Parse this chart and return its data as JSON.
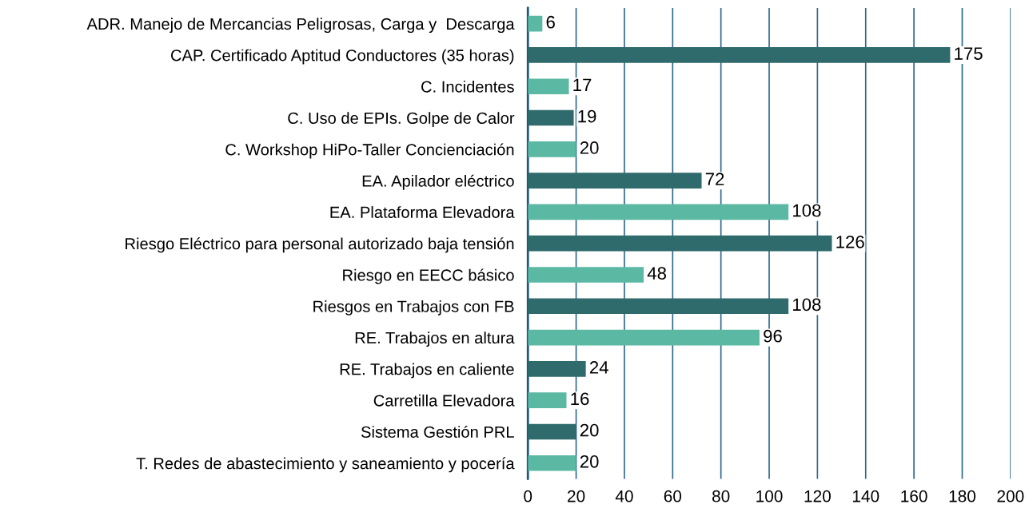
{
  "chart_data": {
    "type": "bar",
    "orientation": "horizontal",
    "categories": [
      "ADR. Manejo de Mercancias Peligrosas, Carga y  Descarga",
      "CAP. Certificado Aptitud Conductores (35 horas)",
      "C. Incidentes",
      "C. Uso de EPIs. Golpe de Calor",
      "C. Workshop HiPo-Taller Concienciación",
      "EA. Apilador eléctrico",
      "EA. Plataforma Elevadora",
      "Riesgo Eléctrico para personal autorizado baja tensión",
      "Riesgo en EECC básico",
      "Riesgos en Trabajos con FB",
      "RE. Trabajos en altura",
      "RE. Trabajos en caliente",
      "Carretilla Elevadora",
      "Sistema Gestión PRL",
      "T. Redes de abastecimiento y saneamiento y pocería"
    ],
    "values": [
      6,
      175,
      17,
      19,
      20,
      72,
      108,
      126,
      48,
      108,
      96,
      24,
      16,
      20,
      20
    ],
    "colors": [
      "#5bb9a3",
      "#2f6b6d",
      "#5bb9a3",
      "#2f6b6d",
      "#5bb9a3",
      "#2f6b6d",
      "#5bb9a3",
      "#2f6b6d",
      "#5bb9a3",
      "#2f6b6d",
      "#5bb9a3",
      "#2f6b6d",
      "#5bb9a3",
      "#2f6b6d",
      "#5bb9a3"
    ],
    "xlim": [
      0,
      200
    ],
    "xticks": [
      0,
      20,
      40,
      60,
      80,
      100,
      120,
      140,
      160,
      180,
      200
    ],
    "grid": "x",
    "data_labels": true
  }
}
